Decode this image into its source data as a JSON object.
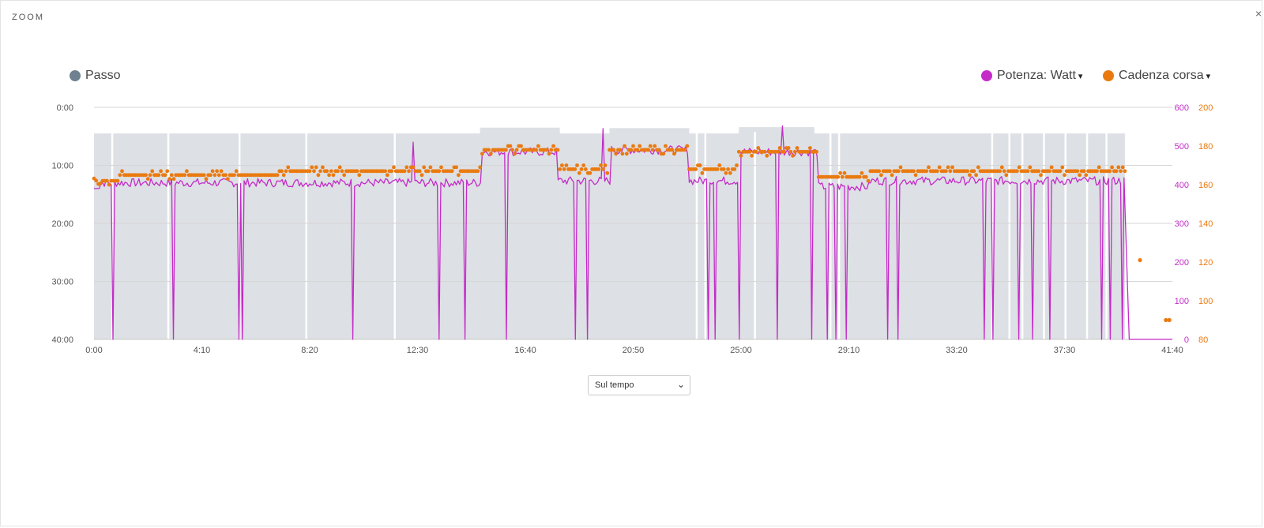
{
  "window": {
    "title": "ZOOM",
    "close_glyph": "×"
  },
  "legend": {
    "left": [
      {
        "label": "Passo",
        "color": "#6f8190"
      }
    ],
    "right": [
      {
        "label": "Potenza: Watt",
        "color": "#c42bc8",
        "caret": "▾"
      },
      {
        "label": "Cadenza corsa",
        "color": "#ea7a10",
        "caret": "▾"
      }
    ]
  },
  "controls": {
    "x_mode": {
      "selected": "Sul tempo",
      "icon": "chevron-down-icon"
    }
  },
  "chart_data": {
    "type": "line",
    "x": {
      "label": "",
      "unit": "seconds",
      "range": [
        0,
        2500
      ],
      "ticks": [
        0,
        250,
        500,
        750,
        1000,
        1250,
        1500,
        1750,
        2000,
        2250,
        2500
      ],
      "tick_labels": [
        "0:00",
        "4:10",
        "8:20",
        "12:30",
        "16:40",
        "20:50",
        "25:00",
        "29:10",
        "33:20",
        "37:30",
        "41:40"
      ]
    },
    "axes": {
      "pace": {
        "side": "left",
        "reversed": true,
        "unit": "min:sec",
        "range": [
          0,
          2400
        ],
        "ticks": [
          0,
          600,
          1200,
          1800,
          2400
        ],
        "tick_labels": [
          "0:00",
          "10:00",
          "20:00",
          "30:00",
          "40:00"
        ],
        "color": "#6f8190"
      },
      "power": {
        "side": "right",
        "unit": "W",
        "range": [
          0,
          600
        ],
        "ticks": [
          0,
          100,
          200,
          300,
          400,
          500,
          600
        ],
        "tick_labels": [
          "0",
          "100",
          "200",
          "300",
          "400",
          "500",
          "600"
        ],
        "color": "#c42bc8"
      },
      "cadence": {
        "side": "right",
        "range": [
          80,
          200
        ],
        "ticks": [
          80,
          100,
          120,
          140,
          160,
          180,
          200
        ],
        "tick_labels": [
          "80",
          "100",
          "120",
          "140",
          "160",
          "180",
          "200"
        ],
        "color": "#ea7a10"
      }
    },
    "grid": true,
    "series": [
      {
        "name": "Passo",
        "type": "area",
        "axis": "pace",
        "color": "#dde0e4",
        "segments": [
          {
            "x": [
              0,
              2390
            ],
            "pace": 270
          },
          {
            "x": [
              895,
              1080
            ],
            "pace": 210
          },
          {
            "x": [
              1195,
              1380
            ],
            "pace": 215
          },
          {
            "x": [
              1495,
              1670
            ],
            "pace": 205
          }
        ],
        "gaps_x": [
          40,
          170,
          335,
          490,
          695,
          1395,
          1415,
          1530,
          1705,
          1725,
          2080,
          2120,
          2150,
          2200,
          2250,
          2300,
          2345
        ],
        "tail_end_x": 2390
      },
      {
        "name": "Potenza: Watt",
        "type": "line",
        "axis": "power",
        "color": "#c42bc8",
        "segments": [
          {
            "x": [
              0,
              900
            ],
            "watts": 405
          },
          {
            "x": [
              900,
              1075
            ],
            "watts": 485
          },
          {
            "x": [
              1075,
              1200
            ],
            "watts": 410
          },
          {
            "x": [
              1200,
              1380
            ],
            "watts": 490
          },
          {
            "x": [
              1380,
              1495
            ],
            "watts": 410
          },
          {
            "x": [
              1495,
              1680
            ],
            "watts": 485
          },
          {
            "x": [
              1680,
              1800
            ],
            "watts": 395
          },
          {
            "x": [
              1800,
              2390
            ],
            "watts": 410
          }
        ],
        "drops_x": [
          45,
          170,
          183,
          335,
          345,
          370,
          410,
          490,
          550,
          600,
          690,
          740,
          800,
          830,
          860,
          955,
          1115,
          1145,
          1425,
          1440,
          1495,
          1585,
          1665,
          1690,
          1700,
          1720,
          1745,
          1790,
          1840,
          1865,
          2065,
          2085,
          2145,
          2175,
          2215,
          2290,
          2335,
          2355,
          2385
        ],
        "spikes": [
          {
            "x": 1180,
            "watts": 545
          },
          {
            "x": 1490,
            "watts": 550
          },
          {
            "x": 1595,
            "watts": 552
          },
          {
            "x": 740,
            "watts": 510
          }
        ],
        "tail": {
          "x": [
            2400,
            2500
          ],
          "watts": 0
        }
      },
      {
        "name": "Cadenza corsa",
        "type": "scatter",
        "axis": "cadence",
        "color": "#ea7a10",
        "segments": [
          {
            "x": [
              0,
              60
            ],
            "spm": 162
          },
          {
            "x": [
              60,
              430
            ],
            "spm": 165
          },
          {
            "x": [
              430,
              900
            ],
            "spm": 167
          },
          {
            "x": [
              900,
              1080
            ],
            "spm": 178
          },
          {
            "x": [
              1080,
              1195
            ],
            "spm": 168
          },
          {
            "x": [
              1195,
              1380
            ],
            "spm": 178
          },
          {
            "x": [
              1380,
              1495
            ],
            "spm": 168
          },
          {
            "x": [
              1495,
              1680
            ],
            "spm": 177
          },
          {
            "x": [
              1680,
              1800
            ],
            "spm": 164
          },
          {
            "x": [
              1800,
              2390
            ],
            "spm": 167
          }
        ],
        "outliers": [
          {
            "x": 2425,
            "spm": 121
          },
          {
            "x": 2485,
            "spm": 90
          },
          {
            "x": 2493,
            "spm": 90
          }
        ]
      }
    ]
  }
}
